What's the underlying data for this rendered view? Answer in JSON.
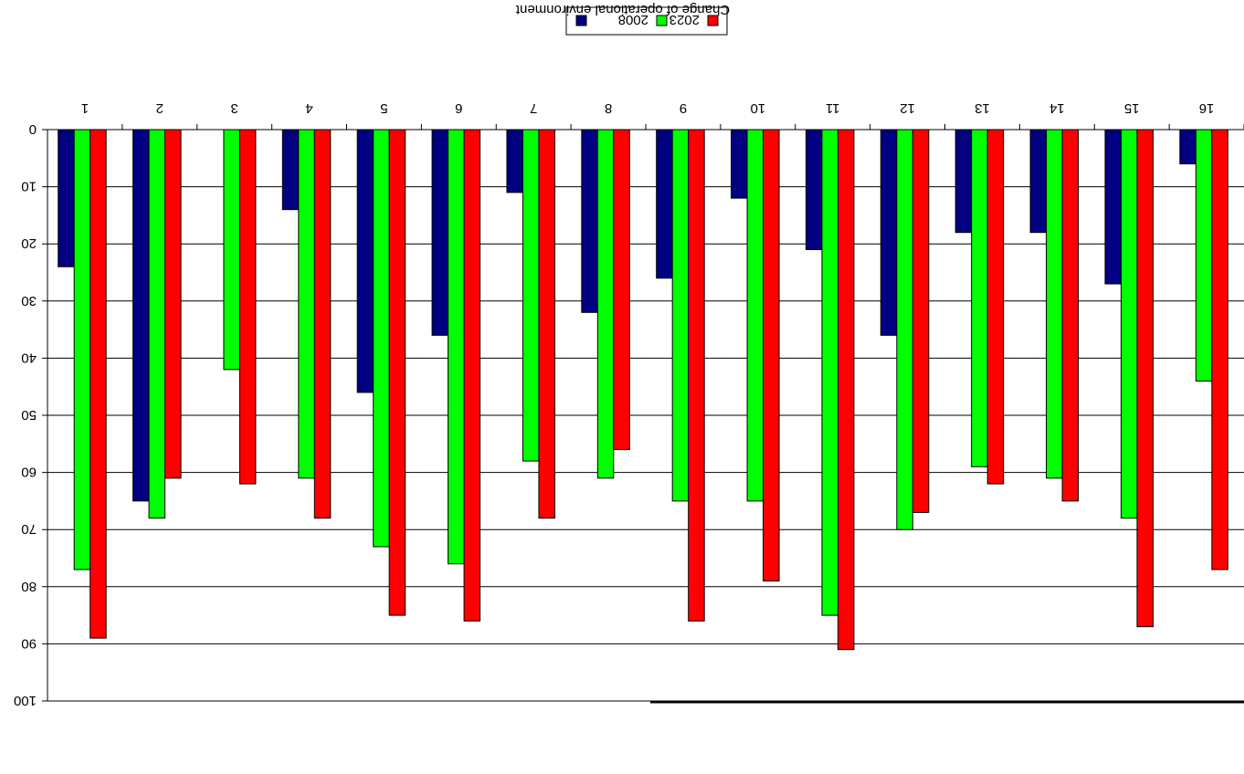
{
  "chart_data": {
    "type": "bar",
    "title": "",
    "xlabel": "Change of operational environment",
    "ylabel": "",
    "categories": [
      "1",
      "2",
      "3",
      "4",
      "5",
      "6",
      "7",
      "8",
      "9",
      "10",
      "11",
      "12",
      "13",
      "14",
      "15",
      "16"
    ],
    "series": [
      {
        "name": "",
        "color": "#000080",
        "values": [
          24,
          65,
          0,
          14,
          46,
          36,
          11,
          32,
          26,
          12,
          21,
          36,
          18,
          18,
          27,
          6
        ]
      },
      {
        "name": "2008",
        "color": "#00ff00",
        "values": [
          77,
          68,
          42,
          61,
          73,
          76,
          58,
          61,
          65,
          65,
          85,
          70,
          59,
          61,
          68,
          44
        ]
      },
      {
        "name": "2023",
        "color": "#ff0000",
        "values": [
          89,
          61,
          62,
          68,
          85,
          86,
          68,
          56,
          86,
          79,
          91,
          67,
          62,
          65,
          87,
          77
        ]
      }
    ],
    "ylim": [
      0,
      100
    ],
    "yticks": [
      0,
      10,
      20,
      30,
      40,
      50,
      60,
      70,
      80,
      90,
      100
    ],
    "grid": true,
    "legend_position": "top"
  }
}
